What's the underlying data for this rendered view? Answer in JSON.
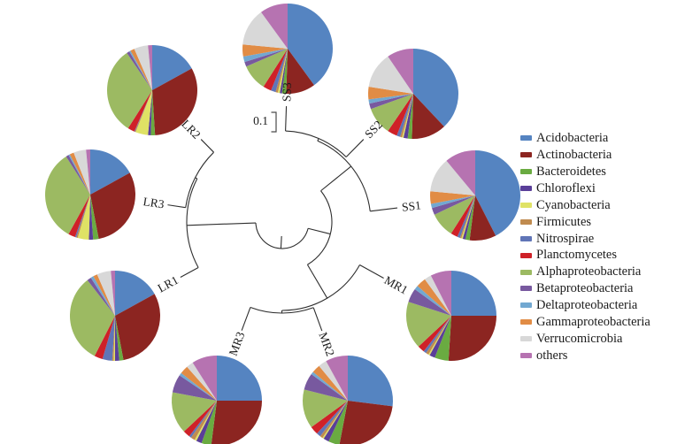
{
  "figure": {
    "scale_bar": "0.1",
    "description": "Circular cladogram of nine samples, each tip bearing a pie chart of relative abundance of bacterial taxa"
  },
  "legend": {
    "position": "right",
    "items": [
      {
        "label": "Acidobacteria",
        "color": "#5584c1"
      },
      {
        "label": "Actinobacteria",
        "color": "#8c2521"
      },
      {
        "label": "Bacteroidetes",
        "color": "#6aab41"
      },
      {
        "label": "Chloroflexi",
        "color": "#5a3f99"
      },
      {
        "label": "Cyanobacteria",
        "color": "#dfe265"
      },
      {
        "label": "Firmicutes",
        "color": "#c08b4f"
      },
      {
        "label": "Nitrospirae",
        "color": "#6075b7"
      },
      {
        "label": "Planctomycetes",
        "color": "#cf2128"
      },
      {
        "label": "Alphaproteobacteria",
        "color": "#9cba62"
      },
      {
        "label": "Betaproteobacteria",
        "color": "#78599f"
      },
      {
        "label": "Deltaproteobacteria",
        "color": "#72a8d1"
      },
      {
        "label": "Gammaproteobacteria",
        "color": "#e18c45"
      },
      {
        "label": "Verrucomicrobia",
        "color": "#d8d8d8"
      },
      {
        "label": "others",
        "color": "#b673b1"
      }
    ]
  },
  "chart_data": {
    "type": "pie",
    "unit": "percent (estimated from figure)",
    "slice_order": "clockwise from 12 o'clock, legend order",
    "tree_topology": "(((LR2,LR3),LR1),((((SS3,SS2),SS1),((MR2,MR3),MR1))))",
    "scale_bar_value": "0.1",
    "categories": [
      "Acidobacteria",
      "Actinobacteria",
      "Bacteroidetes",
      "Chloroflexi",
      "Cyanobacteria",
      "Firmicutes",
      "Nitrospirae",
      "Planctomycetes",
      "Alphaproteobacteria",
      "Betaproteobacteria",
      "Deltaproteobacteria",
      "Gammaproteobacteria",
      "Verrucomicrobia",
      "others"
    ],
    "colors": [
      "#5584c1",
      "#8c2521",
      "#6aab41",
      "#5a3f99",
      "#dfe265",
      "#c08b4f",
      "#6075b7",
      "#cf2128",
      "#9cba62",
      "#78599f",
      "#72a8d1",
      "#e18c45",
      "#d8d8d8",
      "#b673b1"
    ],
    "pies": [
      {
        "name": "SS3",
        "values": [
          40,
          10.5,
          1.5,
          0.8,
          0.7,
          0.8,
          1.7,
          3,
          9.5,
          1.7,
          2,
          4.3,
          13.5,
          10
        ]
      },
      {
        "name": "SS2",
        "values": [
          38,
          12.5,
          1.5,
          1.5,
          0.5,
          0.7,
          1.3,
          3.5,
          10,
          2,
          1.5,
          4.5,
          13,
          9.5
        ]
      },
      {
        "name": "SS1",
        "values": [
          42.5,
          9.5,
          1.5,
          1,
          0.5,
          0.5,
          1,
          2.5,
          9,
          2.5,
          1.5,
          4.5,
          12.5,
          11
        ]
      },
      {
        "name": "MR1",
        "values": [
          25,
          26,
          5,
          2,
          0.5,
          1,
          1,
          2.5,
          17,
          5,
          1.5,
          3.5,
          2.5,
          7.5
        ]
      },
      {
        "name": "MR2",
        "values": [
          27,
          26,
          4,
          2,
          0.5,
          1,
          1.5,
          3,
          14,
          6,
          1,
          3,
          3,
          8
        ]
      },
      {
        "name": "MR3",
        "values": [
          25,
          27,
          3.5,
          2,
          0.7,
          1.5,
          0.8,
          2.5,
          15,
          6.5,
          1,
          3,
          2.5,
          9
        ]
      },
      {
        "name": "LR1",
        "values": [
          17,
          30,
          1.5,
          1.5,
          0.5,
          0.5,
          3.5,
          3,
          32,
          1.5,
          1,
          1.5,
          5,
          1.5
        ]
      },
      {
        "name": "LR3",
        "values": [
          17,
          30,
          2,
          1.5,
          4,
          0.5,
          0.5,
          2.5,
          33,
          1,
          0.5,
          1.5,
          4.5,
          1.5
        ]
      },
      {
        "name": "LR2",
        "values": [
          17,
          32,
          1.5,
          1,
          4.5,
          0.3,
          0.2,
          2.5,
          31.5,
          1,
          0.5,
          1.5,
          5,
          1.5
        ]
      }
    ]
  }
}
